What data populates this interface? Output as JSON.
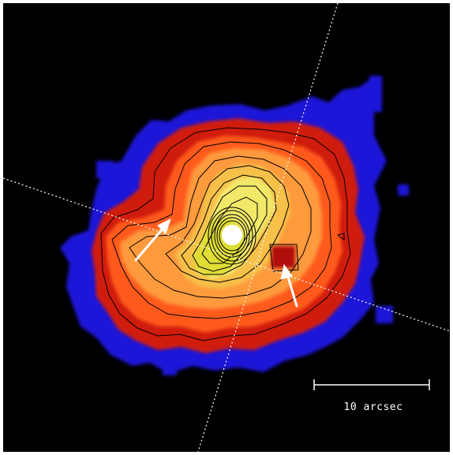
{
  "image": {
    "description_free": true,
    "colormap": [
      "#1f14d8",
      "#d01a10",
      "#ff5a1c",
      "#ff9a3c",
      "#f6c04a",
      "#f2e86a",
      "#d8d820",
      "#ffffff"
    ],
    "background_color": "#000000"
  },
  "scale_bar": {
    "label": "10 arcsec",
    "color": "#ffffff"
  },
  "annotations": {
    "arrow_count": 2,
    "arrow_color": "#ffffff",
    "axis_line_style": "dotted",
    "axis_line_count": 2
  }
}
